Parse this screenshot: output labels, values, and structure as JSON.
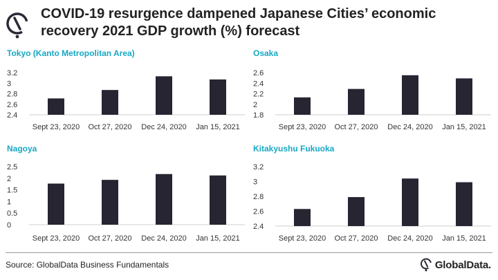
{
  "title": "COVID-19 resurgence dampened Japanese Cities’ economic recovery 2021 GDP growth (%) forecast",
  "source": "Source: GlobalData Business Fundamentals",
  "brand": "GlobalData.",
  "colors": {
    "bar": "#272532",
    "accent": "#17a8c4",
    "logo": "#2a2a35"
  },
  "chart_data": [
    {
      "type": "bar",
      "title": "Tokyo (Kanto Metropolitan Area)",
      "categories": [
        "Sept 23, 2020",
        "Oct 27, 2020",
        "Dec 24, 2020",
        "Jan 15, 2021"
      ],
      "values": [
        2.71,
        2.87,
        3.13,
        3.07
      ],
      "ylim": [
        2.4,
        3.2
      ],
      "yticks": [
        "2.4",
        "2.6",
        "2.8",
        "3",
        "3.2"
      ],
      "ytick_values": [
        2.4,
        2.6,
        2.8,
        3.0,
        3.2
      ]
    },
    {
      "type": "bar",
      "title": "Osaka",
      "categories": [
        "Sept 23, 2020",
        "Oct 27, 2020",
        "Dec 24, 2020",
        "Jan 15, 2021"
      ],
      "values": [
        2.13,
        2.29,
        2.55,
        2.49
      ],
      "ylim": [
        1.8,
        2.6
      ],
      "yticks": [
        "1.8",
        "2",
        "2.2",
        "2.4",
        "2.6"
      ],
      "ytick_values": [
        1.8,
        2.0,
        2.2,
        2.4,
        2.6
      ]
    },
    {
      "type": "bar",
      "title": "Nagoya",
      "categories": [
        "Sept 23, 2020",
        "Oct 27, 2020",
        "Dec 24, 2020",
        "Jan 15, 2021"
      ],
      "values": [
        1.77,
        1.93,
        2.18,
        2.12
      ],
      "ylim": [
        0,
        2.5
      ],
      "yticks": [
        "0",
        "0.5",
        "1",
        "1.5",
        "2",
        "2.5"
      ],
      "ytick_values": [
        0,
        0.5,
        1.0,
        1.5,
        2.0,
        2.5
      ]
    },
    {
      "type": "bar",
      "title": "Kitakyushu Fukuoka",
      "categories": [
        "Sept 23, 2020",
        "Oct 27, 2020",
        "Dec 24, 2020",
        "Jan 15, 2021"
      ],
      "values": [
        2.63,
        2.79,
        3.04,
        2.99
      ],
      "ylim": [
        2.4,
        3.2
      ],
      "yticks": [
        "2.4",
        "2.6",
        "2.8",
        "3",
        "3.2"
      ],
      "ytick_values": [
        2.4,
        2.6,
        2.8,
        3.0,
        3.2
      ]
    }
  ]
}
